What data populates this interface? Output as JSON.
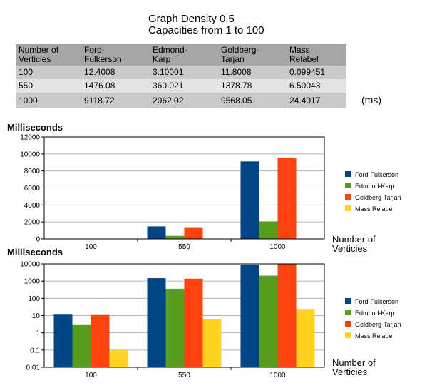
{
  "title_line1": "Graph Density 0.5",
  "title_line2": "Capacities from 1 to 100",
  "table": {
    "headers": [
      [
        "Number of",
        "Verticies"
      ],
      [
        "Ford-",
        "Fulkerson"
      ],
      [
        "Edmond-",
        "Karp"
      ],
      [
        "Goldberg-",
        "Tarjan"
      ],
      [
        "Mass",
        "Relabel"
      ]
    ],
    "rows": [
      [
        "100",
        "12.4008",
        "3.10001",
        "11.8008",
        "0.099451"
      ],
      [
        "550",
        "1476.08",
        "360.021",
        "1378.78",
        "6.50043"
      ],
      [
        "1000",
        "9118.72",
        "2062.02",
        "9568.05",
        "24.4017"
      ]
    ],
    "unit": "(ms)"
  },
  "chart_data": [
    {
      "type": "bar",
      "ylabel": "Milliseconds",
      "xlabel": [
        "Number of",
        "Verticies"
      ],
      "categories": [
        "100",
        "550",
        "1000"
      ],
      "series": [
        {
          "name": "Ford-Fulkerson",
          "values": [
            12.4008,
            1476.08,
            9118.72
          ],
          "color": "#004586"
        },
        {
          "name": "Edmond-Karp",
          "values": [
            3.10001,
            360.021,
            2062.02
          ],
          "color": "#579d1c"
        },
        {
          "name": "Goldberg-Tarjan",
          "values": [
            11.8008,
            1378.78,
            9568.05
          ],
          "color": "#ff420e"
        },
        {
          "name": "Mass Relabel",
          "values": [
            0.099451,
            6.50043,
            24.4017
          ],
          "color": "#ffd320"
        }
      ],
      "ylim": [
        0,
        12000
      ],
      "yticks": [
        "0",
        "2000",
        "4000",
        "6000",
        "8000",
        "10000",
        "12000"
      ],
      "scale": "linear",
      "legend": "right"
    },
    {
      "type": "bar",
      "ylabel": "Milliseconds",
      "xlabel": [
        "Number of",
        "Verticies"
      ],
      "categories": [
        "100",
        "550",
        "1000"
      ],
      "series": [
        {
          "name": "Ford-Fulkerson",
          "values": [
            12.4008,
            1476.08,
            9118.72
          ],
          "color": "#004586"
        },
        {
          "name": "Edmond-Karp",
          "values": [
            3.10001,
            360.021,
            2062.02
          ],
          "color": "#579d1c"
        },
        {
          "name": "Goldberg-Tarjan",
          "values": [
            11.8008,
            1378.78,
            9568.05
          ],
          "color": "#ff420e"
        },
        {
          "name": "Mass Relabel",
          "values": [
            0.099451,
            6.50043,
            24.4017
          ],
          "color": "#ffd320"
        }
      ],
      "ylim": [
        0.01,
        10000
      ],
      "yticks": [
        "0.01",
        "0.1",
        "1",
        "10",
        "100",
        "1000",
        "10000"
      ],
      "scale": "log",
      "legend": "right"
    }
  ]
}
